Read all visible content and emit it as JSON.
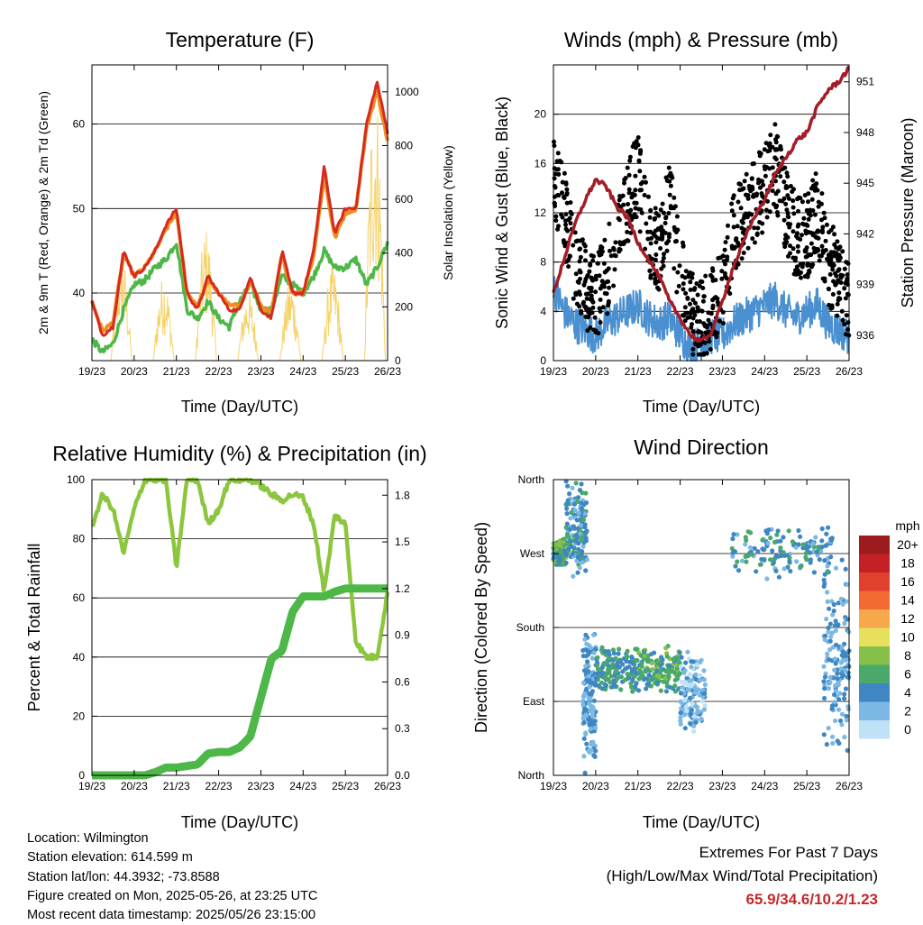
{
  "x_ticks": [
    "19/23",
    "20/23",
    "21/23",
    "22/23",
    "23/23",
    "24/23",
    "25/23",
    "26/23"
  ],
  "x_label": "Time (Day/UTC)",
  "temperature": {
    "title": "Temperature (F)",
    "left_label": "2m & 9m T (Red, Orange) & 2m Td (Green)",
    "right_label": "Solar Insolation (Yellow)",
    "left_ticks": [
      "40",
      "50",
      "60"
    ],
    "right_ticks": [
      "0",
      "200",
      "400",
      "600",
      "800",
      "1000"
    ]
  },
  "winds": {
    "title": "Winds (mph) & Pressure (mb)",
    "left_label": "Sonic Wind & Gust (Blue, Black)",
    "right_label": "Station Pressure (Maroon)",
    "left_ticks": [
      "0",
      "4",
      "8",
      "12",
      "16",
      "20"
    ],
    "right_ticks": [
      "936",
      "939",
      "942",
      "945",
      "948",
      "951"
    ]
  },
  "humidity": {
    "title": "Relative Humidity (%) & Precipitation (in)",
    "left_label": "Percent & Total Rainfall",
    "left_ticks": [
      "0",
      "20",
      "40",
      "60",
      "80",
      "100"
    ],
    "right_ticks": [
      "0.0",
      "0.3",
      "0.6",
      "0.9",
      "1.2",
      "1.5",
      "1.8"
    ]
  },
  "direction": {
    "title": "Wind Direction",
    "left_label": "Direction (Colored By Speed)",
    "left_ticks": [
      "North",
      "East",
      "South",
      "West",
      "North"
    ],
    "legend_title": "mph",
    "legend_labels": [
      "20+",
      "18",
      "16",
      "14",
      "12",
      "10",
      "8",
      "6",
      "4",
      "2",
      "0"
    ],
    "legend_colors": [
      "#9b1b1e",
      "#c42126",
      "#e0402c",
      "#f16b32",
      "#f7a84a",
      "#e7e05c",
      "#86c04a",
      "#4aa86a",
      "#3f87c2",
      "#7bb8e4",
      "#bfe2f7"
    ]
  },
  "info": {
    "location": "Location: Wilmington",
    "elevation": "Station elevation: 614.599 m",
    "latlon": "Station lat/lon: 44.3932; -73.8588",
    "created": "Figure created on Mon, 2025-05-26, at 23:25 UTC",
    "recent": "Most recent data timestamp: 2025/05/26 23:15:00"
  },
  "extremes": {
    "title": "Extremes For Past 7 Days",
    "subtitle": "(High/Low/Max Wind/Total Precipitation)",
    "values": "65.9/34.6/10.2/1.23"
  },
  "chart_data": [
    {
      "type": "line",
      "title": "Temperature (F)",
      "xlabel": "Time (Day/UTC)",
      "ylabel": "2m & 9m T (Red, Orange) & 2m Td (Green)",
      "y2label": "Solar Insolation (Yellow)",
      "x": [
        0,
        0.25,
        0.5,
        0.75,
        1,
        1.25,
        1.5,
        1.75,
        2,
        2.25,
        2.5,
        2.75,
        3,
        3.25,
        3.5,
        3.75,
        4,
        4.25,
        4.5,
        4.75,
        5,
        5.25,
        5.5,
        5.75,
        6,
        6.25,
        6.5,
        6.75,
        7
      ],
      "ylim": [
        32,
        67
      ],
      "y2lim": [
        0,
        1100
      ],
      "series": [
        {
          "name": "2m T",
          "color": "#d62a1f",
          "values": [
            39,
            35,
            36,
            45,
            42,
            43,
            45,
            48,
            50,
            40,
            38,
            42,
            40,
            38,
            38,
            42,
            38,
            37,
            45,
            40,
            40,
            45,
            55,
            47,
            50,
            50,
            60,
            65,
            59
          ]
        },
        {
          "name": "9m T",
          "color": "#f08c20",
          "values": [
            39,
            35.5,
            36.5,
            44.5,
            42,
            43,
            45,
            47.5,
            49.5,
            40,
            38.5,
            41.5,
            40,
            38.5,
            38.5,
            41.5,
            38.5,
            37.5,
            44.5,
            40,
            40,
            44.5,
            54,
            46.5,
            49.5,
            50,
            59.5,
            64,
            58
          ]
        },
        {
          "name": "2m Td",
          "color": "#4db848",
          "values": [
            34.5,
            33,
            34,
            38,
            41,
            41.5,
            43,
            44,
            46,
            38,
            37,
            39,
            37,
            36,
            39,
            41,
            38,
            38,
            42,
            41,
            40,
            42,
            45,
            43,
            43,
            44,
            41,
            43,
            46
          ]
        },
        {
          "name": "Solar Insolation",
          "color": "#f5d26b",
          "axis": "right",
          "peaks": [
            400,
            320,
            500,
            260,
            300,
            340,
            360,
            700,
            1050,
            920
          ]
        }
      ]
    },
    {
      "type": "line",
      "title": "Winds (mph) & Pressure (mb)",
      "xlabel": "Time (Day/UTC)",
      "ylabel": "Sonic Wind & Gust (Blue, Black)",
      "y2label": "Station Pressure (Maroon)",
      "x": [
        0,
        0.25,
        0.5,
        0.75,
        1,
        1.25,
        1.5,
        1.75,
        2,
        2.25,
        2.5,
        2.75,
        3,
        3.25,
        3.5,
        3.75,
        4,
        4.25,
        4.5,
        4.75,
        5,
        5.25,
        5.5,
        5.75,
        6,
        6.25,
        6.5,
        6.75,
        7
      ],
      "ylim": [
        0,
        24
      ],
      "y2lim": [
        934.5,
        952
      ],
      "series": [
        {
          "name": "Sonic Wind",
          "color": "#4a90d0",
          "values": [
            6,
            4,
            3,
            2.5,
            2,
            3,
            3.5,
            4,
            4.5,
            3.5,
            3,
            3.5,
            2,
            1,
            1.5,
            2,
            2,
            3,
            3.5,
            4,
            4.5,
            5,
            4,
            3.5,
            4,
            4.5,
            3,
            2.5,
            2
          ]
        },
        {
          "name": "Gust",
          "color": "#000000",
          "values": [
            15,
            12,
            8,
            6,
            5,
            7,
            10,
            13,
            15,
            10,
            9,
            13,
            7,
            4,
            3,
            4,
            6,
            10,
            12,
            13,
            14,
            16,
            12,
            10,
            10,
            12,
            8,
            7,
            5
          ]
        },
        {
          "name": "Station Pressure",
          "color": "#a31c26",
          "axis": "right",
          "values": [
            938.5,
            940.5,
            942.5,
            944,
            945.2,
            944.8,
            943.6,
            943,
            941.5,
            940.5,
            939.5,
            938,
            937,
            936,
            935.6,
            936.2,
            938,
            940,
            941.5,
            943,
            944,
            945.5,
            946.5,
            947.5,
            948,
            949.5,
            950.5,
            951,
            951.8
          ]
        }
      ]
    },
    {
      "type": "line",
      "title": "Relative Humidity (%) & Precipitation (in)",
      "xlabel": "Time (Day/UTC)",
      "ylabel": "Percent & Total Rainfall",
      "x": [
        0,
        0.25,
        0.5,
        0.75,
        1,
        1.25,
        1.5,
        1.75,
        2,
        2.25,
        2.5,
        2.75,
        3,
        3.25,
        3.5,
        3.75,
        4,
        4.25,
        4.5,
        4.75,
        5,
        5.25,
        5.5,
        5.75,
        6,
        6.25,
        6.5,
        6.75,
        7
      ],
      "ylim": [
        0,
        100
      ],
      "y2lim": [
        0,
        1.9
      ],
      "series": [
        {
          "name": "Relative Humidity",
          "color": "#8cc63f",
          "values": [
            84,
            95,
            90,
            75,
            90,
            100,
            100,
            100,
            70,
            100,
            100,
            85,
            90,
            100,
            100,
            100,
            98,
            95,
            93,
            95,
            94,
            85,
            62,
            88,
            85,
            45,
            40,
            40,
            62
          ]
        },
        {
          "name": "Total Precipitation",
          "color": "#4db848",
          "axis": "right",
          "values": [
            0,
            0,
            0,
            0,
            0,
            0,
            0.02,
            0.05,
            0.05,
            0.06,
            0.07,
            0.14,
            0.15,
            0.15,
            0.18,
            0.25,
            0.5,
            0.75,
            0.8,
            1.05,
            1.15,
            1.15,
            1.15,
            1.18,
            1.2,
            1.2,
            1.2,
            1.2,
            1.2
          ]
        }
      ]
    },
    {
      "type": "scatter",
      "title": "Wind Direction",
      "xlabel": "Time (Day/UTC)",
      "ylabel": "Direction (Colored By Speed)",
      "y_categories": [
        "North",
        "East",
        "South",
        "West",
        "North"
      ],
      "ylim": [
        0,
        360
      ],
      "color_scale": {
        "title": "mph",
        "labels": [
          "20+",
          "18",
          "16",
          "14",
          "12",
          "10",
          "8",
          "6",
          "4",
          "2",
          "0"
        ]
      },
      "clusters": [
        {
          "x_range": [
            0,
            0.3
          ],
          "dir_center": 272,
          "dir_spread": 12,
          "speed": 6
        },
        {
          "x_range": [
            0.3,
            0.8
          ],
          "dir_center": 300,
          "dir_spread": 40,
          "speed": 4
        },
        {
          "x_range": [
            0.7,
            1.0
          ],
          "dir_center": 95,
          "dir_spread": 60,
          "speed": 3
        },
        {
          "x_range": [
            1.0,
            2.0
          ],
          "dir_center": 130,
          "dir_spread": 20,
          "speed": 5
        },
        {
          "x_range": [
            2.0,
            3.0
          ],
          "dir_center": 130,
          "dir_spread": 20,
          "speed": 6
        },
        {
          "x_range": [
            3.0,
            3.6
          ],
          "dir_center": 100,
          "dir_spread": 35,
          "speed": 2
        },
        {
          "x_range": [
            4.2,
            6.6
          ],
          "dir_center": 272,
          "dir_spread": 22,
          "speed": 4
        },
        {
          "x_range": [
            6.4,
            7.0
          ],
          "dir_center": 140,
          "dir_spread": 80,
          "speed": 3
        }
      ]
    }
  ]
}
